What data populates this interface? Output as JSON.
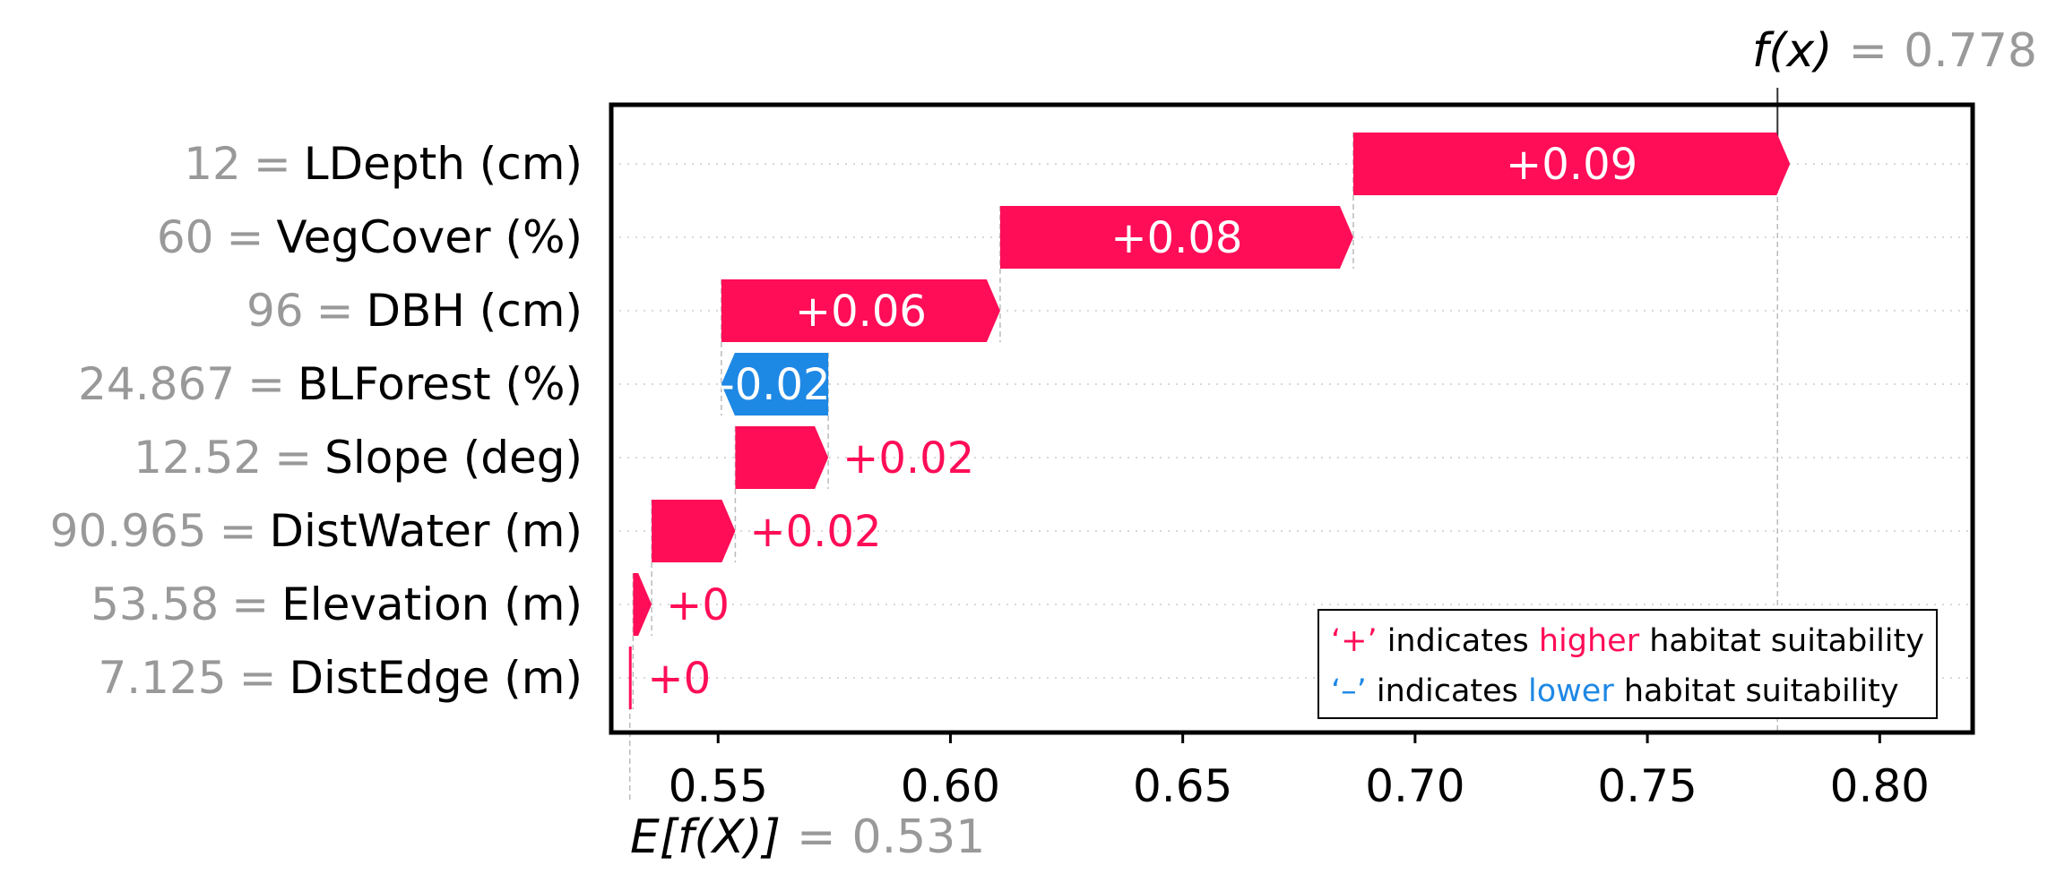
{
  "chart_data": {
    "type": "waterfall",
    "base_value": 0.531,
    "base_value_text": "0.531",
    "base_label": "E[f(X)]",
    "output_value": 0.778,
    "output_value_text": "0.778",
    "output_label": "f(x)",
    "equals_sign": "=",
    "xlim": [
      0.527,
      0.82
    ],
    "xticks": [
      0.55,
      0.6,
      0.65,
      0.7,
      0.75,
      0.8
    ],
    "xtick_labels": [
      "0.55",
      "0.60",
      "0.65",
      "0.70",
      "0.75",
      "0.80"
    ],
    "features": [
      {
        "value_text": "12",
        "name": "LDepth (cm)",
        "contribution": 0.094,
        "label": "+0.09"
      },
      {
        "value_text": "60",
        "name": "VegCover (%)",
        "contribution": 0.076,
        "label": "+0.08"
      },
      {
        "value_text": "96",
        "name": "DBH (cm)",
        "contribution": 0.06,
        "label": "+0.06"
      },
      {
        "value_text": "24.867",
        "name": "BLForest (%)",
        "contribution": -0.023,
        "label": "-0.02"
      },
      {
        "value_text": "12.52",
        "name": "Slope (deg)",
        "contribution": 0.02,
        "label": "+0.02"
      },
      {
        "value_text": "90.965",
        "name": "DistWater (m)",
        "contribution": 0.018,
        "label": "+0.02"
      },
      {
        "value_text": "53.58",
        "name": "Elevation (m)",
        "contribution": 0.004,
        "label": "+0"
      },
      {
        "value_text": "7.125",
        "name": "DistEdge (m)",
        "contribution": 0.0007,
        "label": "+0"
      }
    ],
    "colors": {
      "positive": "#ff0d57",
      "negative": "#1e88e5"
    },
    "legend": {
      "items": [
        {
          "symbol": "‘+’",
          "prefix": " indicates ",
          "keyword": "higher",
          "suffix": " habitat suitability",
          "color": "#ff0d57"
        },
        {
          "symbol": "‘–’",
          "prefix": " indicates ",
          "keyword": "lower",
          "suffix": " habitat suitability",
          "color": "#1e88e5"
        }
      ]
    }
  }
}
